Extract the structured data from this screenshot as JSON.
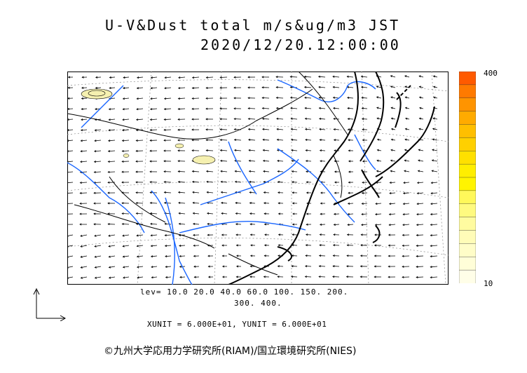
{
  "header": {
    "title_line1": "U-V&Dust total m/s&ug/m3 JST",
    "title_line2": "2020/12/20.12:00:00"
  },
  "colorbar": {
    "max_label": "400",
    "min_label": "10",
    "colors": [
      "#ff5a00",
      "#ff7a00",
      "#ff9400",
      "#ffab00",
      "#ffbf00",
      "#ffd000",
      "#ffe000",
      "#ffee00",
      "#fff400",
      "#fff85a",
      "#fffa80",
      "#fffba0",
      "#fffcb8",
      "#fffdc8",
      "#fffed8",
      "#fffee8"
    ]
  },
  "levels": {
    "line1": "lev= 10.0 20.0 40.0 60.0 100. 150. 200.",
    "line2": "300. 400."
  },
  "units_text": "XUNIT = 6.000E+01, YUNIT = 6.000E+01",
  "credit": "©九州大学応用力学研究所(RIAM)/国立環境研究所(NIES)",
  "map": {
    "wind_color": "#000000",
    "river_color": "#1a66ff",
    "dust_fill": "#f5f0b0"
  }
}
